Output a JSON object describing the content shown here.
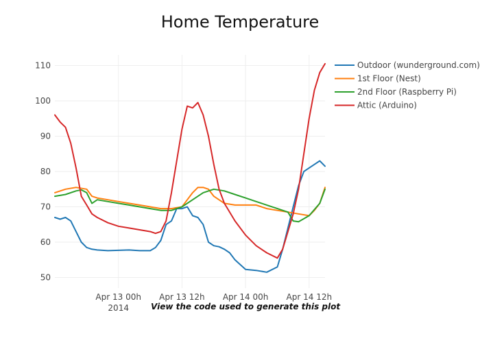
{
  "chart_data": {
    "type": "line",
    "title": "Home Temperature",
    "x_start": "2014-04-12 12:00",
    "x_end": "2014-04-14 15:00",
    "x_ticks": [
      {
        "label": "Apr 13 00h",
        "sublabel": "2014",
        "x": "2014-04-13 00:00"
      },
      {
        "label": "Apr 13 12h",
        "sublabel": "",
        "x": "2014-04-13 12:00"
      },
      {
        "label": "Apr 14 00h",
        "sublabel": "",
        "x": "2014-04-14 00:00"
      },
      {
        "label": "Apr 14 12h",
        "sublabel": "",
        "x": "2014-04-14 12:00"
      }
    ],
    "ylim": [
      47,
      113
    ],
    "y_ticks": [
      50,
      60,
      70,
      80,
      90,
      100,
      110
    ],
    "grid": true,
    "legend_position": "top-right",
    "annotation": "View the code used to generate this plot",
    "series": [
      {
        "name": "Outdoor (wunderground.com)",
        "color": "#1f77b4",
        "x": [
          "2014-04-12 12:00",
          "2014-04-12 13:00",
          "2014-04-12 14:00",
          "2014-04-12 15:00",
          "2014-04-12 16:00",
          "2014-04-12 17:00",
          "2014-04-12 18:00",
          "2014-04-12 19:00",
          "2014-04-12 20:00",
          "2014-04-12 22:00",
          "2014-04-13 00:00",
          "2014-04-13 02:00",
          "2014-04-13 04:00",
          "2014-04-13 06:00",
          "2014-04-13 07:00",
          "2014-04-13 08:00",
          "2014-04-13 09:00",
          "2014-04-13 10:00",
          "2014-04-13 11:00",
          "2014-04-13 12:00",
          "2014-04-13 13:00",
          "2014-04-13 14:00",
          "2014-04-13 15:00",
          "2014-04-13 16:00",
          "2014-04-13 17:00",
          "2014-04-13 18:00",
          "2014-04-13 19:00",
          "2014-04-13 20:00",
          "2014-04-13 21:00",
          "2014-04-13 22:00",
          "2014-04-14 00:00",
          "2014-04-14 02:00",
          "2014-04-14 04:00",
          "2014-04-14 06:00",
          "2014-04-14 07:00",
          "2014-04-14 08:00",
          "2014-04-14 09:00",
          "2014-04-14 10:00",
          "2014-04-14 11:00",
          "2014-04-14 12:00",
          "2014-04-14 13:00",
          "2014-04-14 14:00",
          "2014-04-14 15:00"
        ],
        "y": [
          67,
          66.5,
          67,
          66,
          63,
          60,
          58.5,
          58,
          57.8,
          57.6,
          57.7,
          57.8,
          57.6,
          57.6,
          58.5,
          60.5,
          65,
          66,
          69.5,
          69.5,
          70,
          67.5,
          67,
          65,
          60,
          59,
          58.7,
          58,
          57,
          55,
          52.3,
          52,
          51.5,
          53,
          58,
          64,
          70,
          76,
          80,
          81,
          82,
          83,
          81.5
        ]
      },
      {
        "name": "1st Floor (Nest)",
        "color": "#ff7f0e",
        "x": [
          "2014-04-12 12:00",
          "2014-04-12 14:00",
          "2014-04-12 16:00",
          "2014-04-12 18:00",
          "2014-04-12 19:00",
          "2014-04-12 20:00",
          "2014-04-12 22:00",
          "2014-04-13 00:00",
          "2014-04-13 02:00",
          "2014-04-13 04:00",
          "2014-04-13 06:00",
          "2014-04-13 08:00",
          "2014-04-13 10:00",
          "2014-04-13 12:00",
          "2014-04-13 13:00",
          "2014-04-13 14:00",
          "2014-04-13 15:00",
          "2014-04-13 16:00",
          "2014-04-13 17:00",
          "2014-04-13 18:00",
          "2014-04-13 20:00",
          "2014-04-13 22:00",
          "2014-04-14 00:00",
          "2014-04-14 02:00",
          "2014-04-14 04:00",
          "2014-04-14 06:00",
          "2014-04-14 08:00",
          "2014-04-14 10:00",
          "2014-04-14 12:00",
          "2014-04-14 13:00",
          "2014-04-14 14:00",
          "2014-04-14 15:00"
        ],
        "y": [
          74,
          75,
          75.5,
          75,
          73,
          72.5,
          72,
          71.5,
          71,
          70.5,
          70,
          69.5,
          69.5,
          70,
          72,
          74,
          75.5,
          75.5,
          75,
          73,
          71,
          70.5,
          70.5,
          70.5,
          69.5,
          69,
          68.5,
          68,
          67.5,
          69,
          71,
          75.5
        ]
      },
      {
        "name": "2nd Floor (Raspberry Pi)",
        "color": "#2ca02c",
        "x": [
          "2014-04-12 12:00",
          "2014-04-12 14:00",
          "2014-04-12 16:00",
          "2014-04-12 17:00",
          "2014-04-12 18:00",
          "2014-04-12 19:00",
          "2014-04-12 20:00",
          "2014-04-12 22:00",
          "2014-04-13 00:00",
          "2014-04-13 02:00",
          "2014-04-13 04:00",
          "2014-04-13 06:00",
          "2014-04-13 08:00",
          "2014-04-13 10:00",
          "2014-04-13 12:00",
          "2014-04-13 14:00",
          "2014-04-13 16:00",
          "2014-04-13 18:00",
          "2014-04-13 20:00",
          "2014-04-13 22:00",
          "2014-04-14 00:00",
          "2014-04-14 02:00",
          "2014-04-14 04:00",
          "2014-04-14 06:00",
          "2014-04-14 08:00",
          "2014-04-14 09:00",
          "2014-04-14 10:00",
          "2014-04-14 12:00",
          "2014-04-14 14:00",
          "2014-04-14 15:00"
        ],
        "y": [
          73,
          73.5,
          74.5,
          74.8,
          74,
          71,
          72,
          71.5,
          71,
          70.5,
          70,
          69.5,
          69,
          69,
          70,
          72,
          74,
          75,
          74.5,
          73.5,
          72.5,
          71.5,
          70.5,
          69.5,
          68.5,
          66,
          65.8,
          67.5,
          71,
          75
        ]
      },
      {
        "name": "Attic (Arduino)",
        "color": "#d62728",
        "x": [
          "2014-04-12 12:00",
          "2014-04-12 13:00",
          "2014-04-12 14:00",
          "2014-04-12 15:00",
          "2014-04-12 16:00",
          "2014-04-12 17:00",
          "2014-04-12 18:00",
          "2014-04-12 19:00",
          "2014-04-12 20:00",
          "2014-04-12 22:00",
          "2014-04-13 00:00",
          "2014-04-13 02:00",
          "2014-04-13 04:00",
          "2014-04-13 06:00",
          "2014-04-13 07:00",
          "2014-04-13 08:00",
          "2014-04-13 09:00",
          "2014-04-13 10:00",
          "2014-04-13 11:00",
          "2014-04-13 12:00",
          "2014-04-13 13:00",
          "2014-04-13 14:00",
          "2014-04-13 15:00",
          "2014-04-13 16:00",
          "2014-04-13 17:00",
          "2014-04-13 18:00",
          "2014-04-13 19:00",
          "2014-04-13 20:00",
          "2014-04-13 22:00",
          "2014-04-14 00:00",
          "2014-04-14 02:00",
          "2014-04-14 04:00",
          "2014-04-14 06:00",
          "2014-04-14 07:00",
          "2014-04-14 08:00",
          "2014-04-14 09:00",
          "2014-04-14 10:00",
          "2014-04-14 11:00",
          "2014-04-14 12:00",
          "2014-04-14 13:00",
          "2014-04-14 14:00",
          "2014-04-14 15:00"
        ],
        "y": [
          96,
          94,
          92.5,
          88,
          81,
          73,
          70.5,
          68,
          67,
          65.5,
          64.5,
          64,
          63.5,
          63,
          62.5,
          63,
          66,
          74,
          83,
          92,
          98.5,
          98,
          99.5,
          96,
          90,
          82,
          75,
          71,
          66,
          62,
          59,
          57,
          55.5,
          58,
          63,
          68,
          75,
          85,
          95,
          103,
          108,
          110.5
        ]
      }
    ]
  }
}
